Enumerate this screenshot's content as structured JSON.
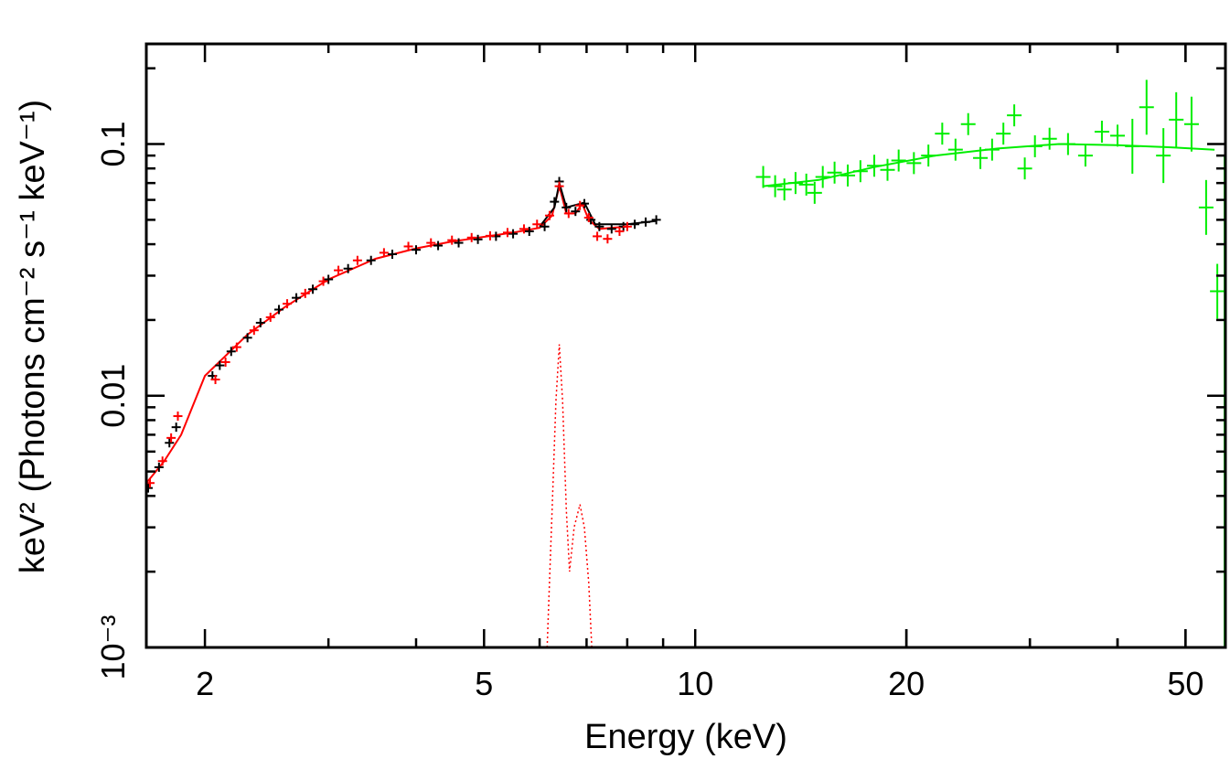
{
  "chart_data": {
    "type": "scatter",
    "title": "",
    "xlabel": "Energy (keV)",
    "ylabel": "keV² (Photons cm⁻² s⁻¹ keV⁻¹)",
    "xscale": "log",
    "yscale": "log",
    "xlim": [
      1.65,
      57
    ],
    "ylim": [
      0.001,
      0.25
    ],
    "x_ticks": [
      {
        "value": 2,
        "label": "2"
      },
      {
        "value": 5,
        "label": "5"
      },
      {
        "value": 10,
        "label": "10"
      },
      {
        "value": 20,
        "label": "20"
      },
      {
        "value": 50,
        "label": "50"
      }
    ],
    "y_ticks": [
      {
        "value": 0.001,
        "label": "10⁻³"
      },
      {
        "value": 0.01,
        "label": "0.01"
      },
      {
        "value": 0.1,
        "label": "0.1"
      }
    ],
    "grid": false,
    "legend": "none",
    "series": [
      {
        "color": "#000000",
        "kind": "data",
        "points": [
          [
            1.66,
            0.0043
          ],
          [
            1.72,
            0.0052
          ],
          [
            1.78,
            0.0065
          ],
          [
            1.82,
            0.0075
          ],
          [
            2.05,
            0.012
          ],
          [
            2.1,
            0.0132
          ],
          [
            2.18,
            0.015
          ],
          [
            2.3,
            0.017
          ],
          [
            2.4,
            0.0195
          ],
          [
            2.55,
            0.022
          ],
          [
            2.7,
            0.0245
          ],
          [
            2.85,
            0.0265
          ],
          [
            3.0,
            0.029
          ],
          [
            3.2,
            0.032
          ],
          [
            3.45,
            0.0345
          ],
          [
            3.7,
            0.0365
          ],
          [
            4.0,
            0.038
          ],
          [
            4.3,
            0.0395
          ],
          [
            4.6,
            0.0405
          ],
          [
            4.9,
            0.0418
          ],
          [
            5.2,
            0.043
          ],
          [
            5.5,
            0.044
          ],
          [
            5.8,
            0.045
          ],
          [
            6.1,
            0.047
          ],
          [
            6.3,
            0.059
          ],
          [
            6.4,
            0.071
          ],
          [
            6.55,
            0.056
          ],
          [
            6.75,
            0.054
          ],
          [
            6.95,
            0.058
          ],
          [
            7.1,
            0.05
          ],
          [
            7.3,
            0.047
          ],
          [
            7.6,
            0.046
          ],
          [
            7.9,
            0.047
          ],
          [
            8.2,
            0.048
          ],
          [
            8.5,
            0.049
          ],
          [
            8.8,
            0.05
          ]
        ]
      },
      {
        "color": "#ff0000",
        "kind": "data",
        "points": [
          [
            1.67,
            0.0045
          ],
          [
            1.74,
            0.0055
          ],
          [
            1.79,
            0.0068
          ],
          [
            1.83,
            0.0083
          ],
          [
            2.07,
            0.0116
          ],
          [
            2.14,
            0.0136
          ],
          [
            2.22,
            0.0156
          ],
          [
            2.35,
            0.0182
          ],
          [
            2.48,
            0.0205
          ],
          [
            2.62,
            0.0232
          ],
          [
            2.78,
            0.0255
          ],
          [
            2.95,
            0.0285
          ],
          [
            3.1,
            0.0315
          ],
          [
            3.3,
            0.0345
          ],
          [
            3.6,
            0.037
          ],
          [
            3.9,
            0.0392
          ],
          [
            4.2,
            0.0405
          ],
          [
            4.5,
            0.0415
          ],
          [
            4.8,
            0.0425
          ],
          [
            5.1,
            0.0432
          ],
          [
            5.4,
            0.0445
          ],
          [
            5.7,
            0.046
          ],
          [
            5.95,
            0.048
          ],
          [
            6.2,
            0.052
          ],
          [
            6.4,
            0.068
          ],
          [
            6.6,
            0.053
          ],
          [
            6.85,
            0.057
          ],
          [
            7.05,
            0.051
          ],
          [
            7.25,
            0.043
          ],
          [
            7.5,
            0.042
          ],
          [
            7.8,
            0.045
          ],
          [
            8.0,
            0.047
          ]
        ]
      },
      {
        "color": "#00ee00",
        "kind": "data",
        "points": [
          [
            12.5,
            0.074
          ],
          [
            13.0,
            0.068
          ],
          [
            13.4,
            0.066
          ],
          [
            13.9,
            0.07
          ],
          [
            14.4,
            0.069
          ],
          [
            14.8,
            0.064
          ],
          [
            15.2,
            0.074
          ],
          [
            15.8,
            0.077
          ],
          [
            16.5,
            0.075
          ],
          [
            17.2,
            0.078
          ],
          [
            18.0,
            0.082
          ],
          [
            18.8,
            0.079
          ],
          [
            19.5,
            0.086
          ],
          [
            20.5,
            0.084
          ],
          [
            21.5,
            0.09
          ],
          [
            22.5,
            0.11
          ],
          [
            23.5,
            0.095
          ],
          [
            24.5,
            0.12
          ],
          [
            25.5,
            0.088
          ],
          [
            26.5,
            0.095
          ],
          [
            27.5,
            0.11
          ],
          [
            28.5,
            0.13
          ],
          [
            29.5,
            0.08
          ],
          [
            30.5,
            0.098
          ],
          [
            32.0,
            0.105
          ],
          [
            34.0,
            0.1
          ],
          [
            36.0,
            0.09
          ],
          [
            38.0,
            0.112
          ],
          [
            40.0,
            0.108
          ],
          [
            42.0,
            0.098
          ],
          [
            44.0,
            0.14
          ],
          [
            46.5,
            0.09
          ],
          [
            48.5,
            0.125
          ],
          [
            51.0,
            0.12
          ],
          [
            53.5,
            0.056
          ],
          [
            55.5,
            0.026
          ]
        ]
      },
      {
        "color": "#ff0000",
        "kind": "line-emission-component",
        "points": [
          [
            6.15,
            0.001
          ],
          [
            6.25,
            0.0035
          ],
          [
            6.33,
            0.0095
          ],
          [
            6.4,
            0.016
          ],
          [
            6.47,
            0.0095
          ],
          [
            6.55,
            0.0035
          ],
          [
            6.62,
            0.002
          ],
          [
            6.72,
            0.003
          ],
          [
            6.85,
            0.0037
          ],
          [
            6.95,
            0.003
          ],
          [
            7.05,
            0.0018
          ],
          [
            7.12,
            0.001
          ]
        ]
      }
    ],
    "models": [
      {
        "color": "#ff0000",
        "points": [
          [
            1.65,
            0.0045
          ],
          [
            1.75,
            0.0055
          ],
          [
            1.85,
            0.007
          ],
          [
            2.0,
            0.012
          ],
          [
            2.3,
            0.0175
          ],
          [
            2.6,
            0.0225
          ],
          [
            3.0,
            0.029
          ],
          [
            3.5,
            0.035
          ],
          [
            4.0,
            0.0385
          ],
          [
            4.5,
            0.041
          ],
          [
            5.0,
            0.0428
          ],
          [
            5.5,
            0.0445
          ],
          [
            6.0,
            0.0465
          ],
          [
            6.25,
            0.052
          ],
          [
            6.4,
            0.068
          ],
          [
            6.55,
            0.053
          ],
          [
            6.75,
            0.053
          ],
          [
            6.9,
            0.058
          ],
          [
            7.05,
            0.05
          ],
          [
            7.3,
            0.046
          ],
          [
            8.0,
            0.047
          ]
        ]
      },
      {
        "color": "#000000",
        "points": [
          [
            6.0,
            0.047
          ],
          [
            6.3,
            0.056
          ],
          [
            6.4,
            0.07
          ],
          [
            6.55,
            0.056
          ],
          [
            6.95,
            0.0585
          ],
          [
            7.2,
            0.048
          ],
          [
            8.0,
            0.048
          ],
          [
            8.8,
            0.0495
          ]
        ]
      },
      {
        "color": "#00ee00",
        "points": [
          [
            12.5,
            0.068
          ],
          [
            15.0,
            0.072
          ],
          [
            18.0,
            0.081
          ],
          [
            22.0,
            0.09
          ],
          [
            27.0,
            0.096
          ],
          [
            33.0,
            0.1
          ],
          [
            40.0,
            0.099
          ],
          [
            48.0,
            0.097
          ],
          [
            55.0,
            0.095
          ]
        ]
      }
    ]
  }
}
